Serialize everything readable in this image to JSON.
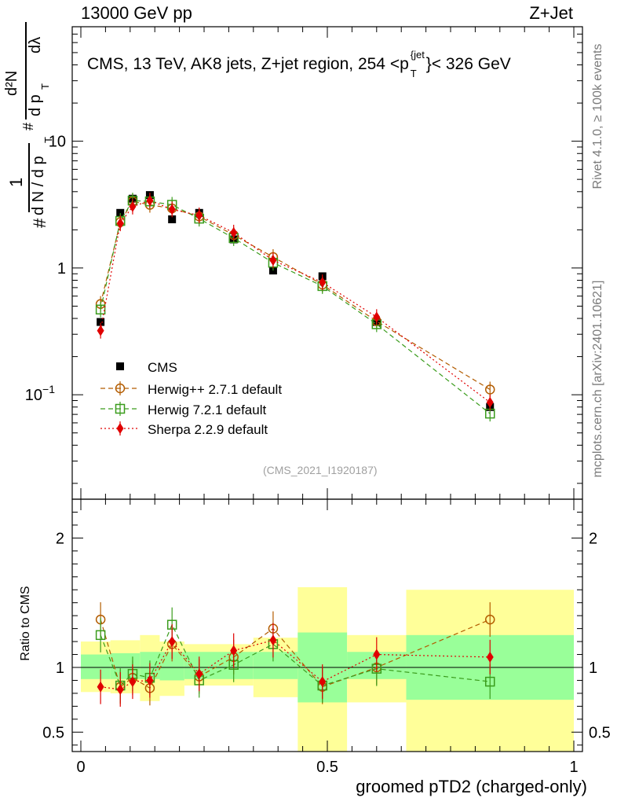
{
  "header": {
    "left": "13000 GeV pp",
    "right": "Z+Jet"
  },
  "plot_title": {
    "prefix": "CMS, 13 TeV, AK8 jets, Z+jet region, 254 <p",
    "sup": "{jet",
    "sub": "T",
    "suffix": "}< 326 GeV"
  },
  "side_labels": {
    "rivet": "Rivet 4.1.0, ≥ 100k events",
    "mcplots": "mcplots.cern.ch [arXiv:2401.10621]"
  },
  "watermark": "(CMS_2021_I1920187)",
  "y_axis_label": {
    "numerator_top": "d²N",
    "denominator_top": "d p",
    "sub_t": "T",
    "dlambda": "dλ",
    "hash": "#",
    "one": "1",
    "dn": "d N / d p"
  },
  "ratio_axis_label": "Ratio to CMS",
  "x_axis_label": "groomed pTD2 (charged-only)",
  "colors": {
    "cms": "#000000",
    "herwigpp": "#b35c00",
    "herwig7": "#3a9c1c",
    "sherpa": "#e00000",
    "band_inner": "#99ff99",
    "band_outer": "#ffff99"
  },
  "chart_data": [
    {
      "type": "scatter",
      "panel": "main",
      "title": "CMS, 13 TeV, AK8 jets, Z+jet region, 254 < pT jet < 326 GeV",
      "xlabel": "groomed pTD2 (charged-only)",
      "ylabel": "1/(dN/dpT) d²N/(dpT dλ)",
      "yscale": "log",
      "xlim": [
        0,
        1
      ],
      "ylim": [
        0.015,
        80
      ],
      "y_tick_labels": [
        "10^-1",
        "1",
        "10"
      ],
      "legend_position": "lower-left",
      "series": [
        {
          "name": "CMS",
          "marker": "filled-square",
          "x": [
            0.04,
            0.08,
            0.105,
            0.14,
            0.185,
            0.24,
            0.31,
            0.39,
            0.49,
            0.6,
            0.83
          ],
          "values": [
            0.375,
            2.72,
            3.52,
            3.76,
            2.42,
            2.72,
            1.68,
            0.955,
            0.86,
            0.375,
            0.08
          ]
        },
        {
          "name": "Herwig++ 2.7.1 default",
          "marker": "open-circle",
          "line": "dashed",
          "x": [
            0.04,
            0.08,
            0.105,
            0.14,
            0.185,
            0.24,
            0.31,
            0.39,
            0.49,
            0.6,
            0.83
          ],
          "values": [
            0.52,
            2.3,
            3.35,
            3.15,
            2.95,
            2.55,
            1.82,
            1.22,
            0.74,
            0.38,
            0.11
          ]
        },
        {
          "name": "Herwig 7.2.1 default",
          "marker": "open-square",
          "line": "dashed",
          "x": [
            0.04,
            0.08,
            0.105,
            0.14,
            0.185,
            0.24,
            0.31,
            0.39,
            0.49,
            0.6,
            0.83
          ],
          "values": [
            0.47,
            2.35,
            3.4,
            3.35,
            3.15,
            2.45,
            1.72,
            1.1,
            0.72,
            0.36,
            0.071
          ]
        },
        {
          "name": "Sherpa 2.2.9 default",
          "marker": "filled-diamond",
          "line": "dotted",
          "x": [
            0.04,
            0.08,
            0.105,
            0.14,
            0.185,
            0.24,
            0.31,
            0.39,
            0.49,
            0.6,
            0.83
          ],
          "values": [
            0.32,
            2.25,
            3.05,
            3.4,
            2.9,
            2.6,
            1.9,
            1.15,
            0.77,
            0.41,
            0.087
          ]
        }
      ]
    },
    {
      "type": "scatter",
      "panel": "ratio",
      "xlabel": "groomed pTD2 (charged-only)",
      "ylabel": "Ratio to CMS",
      "xlim": [
        0,
        1
      ],
      "ylim": [
        0.35,
        2.3
      ],
      "x_tick_labels": [
        "0",
        "0.5",
        "1"
      ],
      "y_tick_labels": [
        "0.5",
        "1",
        "2"
      ],
      "bands": {
        "bin_edges": [
          0,
          0.06,
          0.12,
          0.16,
          0.21,
          0.35,
          0.44,
          0.54,
          0.66,
          1.0
        ],
        "inner_low": [
          0.91,
          0.91,
          0.91,
          0.9,
          0.91,
          0.91,
          0.73,
          0.91,
          0.75
        ],
        "inner_high": [
          1.1,
          1.11,
          1.12,
          1.12,
          1.12,
          1.12,
          1.27,
          1.12,
          1.25
        ],
        "outer_low": [
          0.81,
          0.8,
          0.74,
          0.78,
          0.86,
          0.77,
          0.35,
          0.73,
          0.35
        ],
        "outer_high": [
          1.2,
          1.21,
          1.25,
          1.2,
          1.18,
          1.23,
          1.62,
          1.25,
          1.6
        ]
      },
      "series": [
        {
          "name": "Herwig++ 2.7.1 default",
          "x": [
            0.04,
            0.08,
            0.105,
            0.14,
            0.185,
            0.24,
            0.31,
            0.39,
            0.49,
            0.6,
            0.83
          ],
          "values": [
            1.37,
            0.85,
            0.92,
            0.84,
            1.18,
            0.93,
            1.08,
            1.3,
            0.85,
            1.0,
            1.37
          ]
        },
        {
          "name": "Herwig 7.2.1 default",
          "x": [
            0.04,
            0.08,
            0.105,
            0.14,
            0.185,
            0.24,
            0.31,
            0.39,
            0.49,
            0.6,
            0.83
          ],
          "values": [
            1.25,
            0.86,
            0.95,
            0.92,
            1.33,
            0.9,
            1.02,
            1.18,
            0.86,
            0.99,
            0.89
          ]
        },
        {
          "name": "Sherpa 2.2.9 default",
          "x": [
            0.04,
            0.08,
            0.105,
            0.14,
            0.185,
            0.24,
            0.31,
            0.39,
            0.49,
            0.6,
            0.83
          ],
          "values": [
            0.85,
            0.83,
            0.89,
            0.9,
            1.2,
            0.95,
            1.13,
            1.21,
            0.89,
            1.1,
            1.08
          ]
        }
      ]
    }
  ]
}
